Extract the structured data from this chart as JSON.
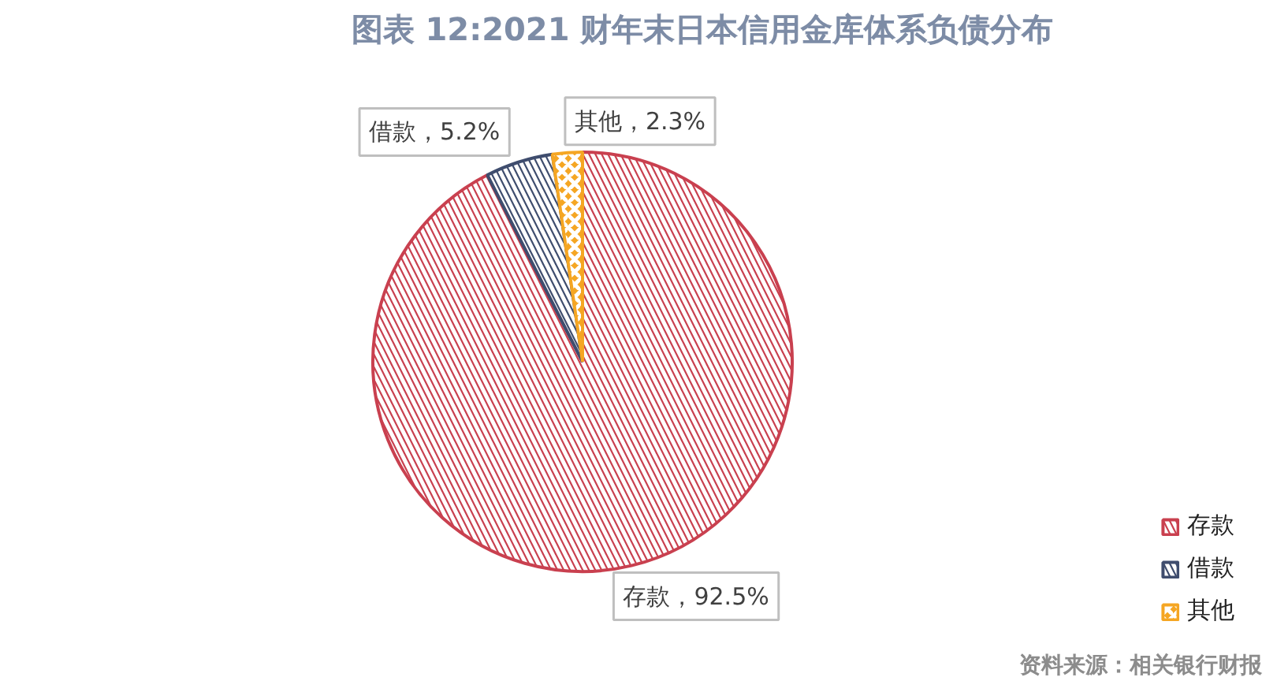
{
  "chart_data": {
    "type": "pie",
    "title": "图表 12:2021 财年末日本信用金库体系负债分布",
    "categories": [
      "存款",
      "借款",
      "其他"
    ],
    "values": [
      92.5,
      5.2,
      2.3
    ],
    "colors": [
      "#c9404f",
      "#3f4d6e",
      "#f5a623"
    ],
    "value_labels": [
      "存款，92.5%",
      "借款，5.2%",
      "其他，2.3%"
    ],
    "legend": "bottom right",
    "annotations": [
      "资料来源：相关银行财报"
    ]
  }
}
